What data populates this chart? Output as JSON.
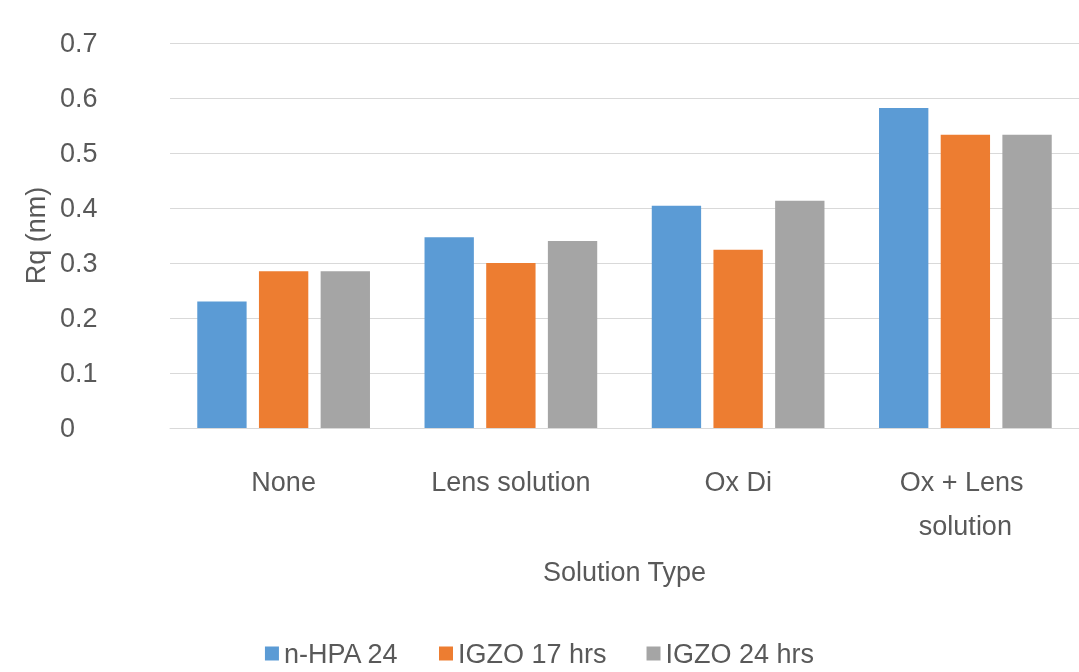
{
  "chart_data": {
    "type": "bar",
    "xlabel": "Solution Type",
    "ylabel": "Rq (nm)",
    "categories": [
      "None",
      "Lens solution",
      "Ox Di",
      "Ox + Lens solution"
    ],
    "series": [
      {
        "name": "n-HPA 24",
        "color": "#5b9bd5",
        "values": [
          0.23,
          0.347,
          0.404,
          0.582
        ]
      },
      {
        "name": "IGZO 17 hrs",
        "color": "#ed7d31",
        "values": [
          0.285,
          0.3,
          0.324,
          0.533
        ]
      },
      {
        "name": "IGZO 24 hrs",
        "color": "#a5a5a5",
        "values": [
          0.285,
          0.34,
          0.413,
          0.533
        ]
      }
    ],
    "ylim": [
      0,
      0.7
    ],
    "yticks": [
      0,
      0.1,
      0.2,
      0.3,
      0.4,
      0.5,
      0.6,
      0.7
    ],
    "grid": "y",
    "legend": "bottom"
  }
}
